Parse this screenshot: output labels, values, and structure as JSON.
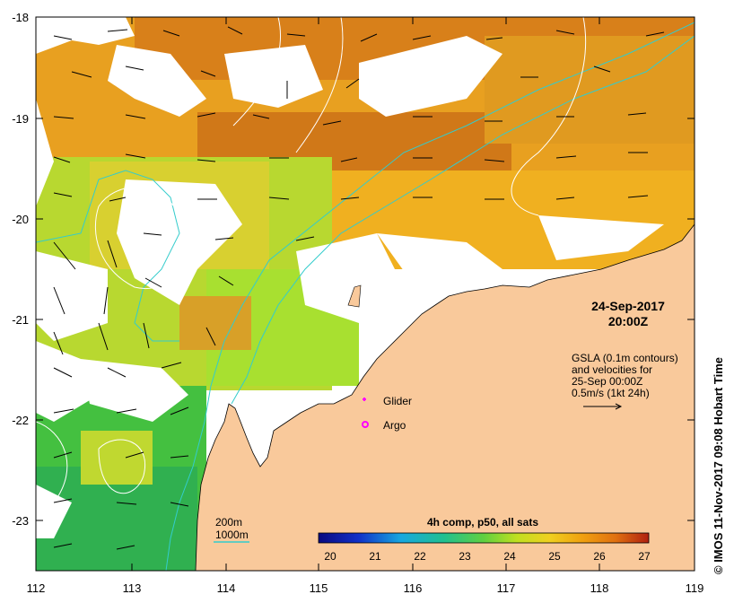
{
  "map": {
    "x_ticks": [
      112,
      113,
      114,
      115,
      116,
      117,
      118,
      119
    ],
    "y_ticks": [
      -18,
      -19,
      -20,
      -21,
      -22,
      -23
    ],
    "lon_range": [
      112,
      119
    ],
    "lat_range": [
      -23.5,
      -18
    ]
  },
  "annotation": {
    "date": "24-Sep-2017",
    "time": "20:00Z"
  },
  "gsla_note": {
    "line1": "GSLA (0.1m contours)",
    "line2": "and velocities for",
    "line3": "25-Sep 00:00Z",
    "line4": "0.5m/s (1kt 24h)"
  },
  "markers": {
    "glider_label": "Glider",
    "argo_label": "Argo",
    "glider_color": "#ff00ff",
    "argo_color": "#ff00ff"
  },
  "bathymetry_legend": {
    "isobath_200": "200m",
    "isobath_1000": "1000m",
    "isobath_color": "#33cccc"
  },
  "colorbar": {
    "title": "4h comp, p50, all sats",
    "ticks": [
      20,
      21,
      22,
      23,
      24,
      25,
      26,
      27
    ],
    "range": [
      20,
      27
    ]
  },
  "credit": "© IMOS 11-Nov-2017 09:08 Hobart Time",
  "colors": {
    "land": "#f9c99b",
    "warm": "#e08a10",
    "mid": "#f0c020",
    "cool": "#66cc33",
    "cold": "#22aa55",
    "isobath": "#33cccc"
  }
}
